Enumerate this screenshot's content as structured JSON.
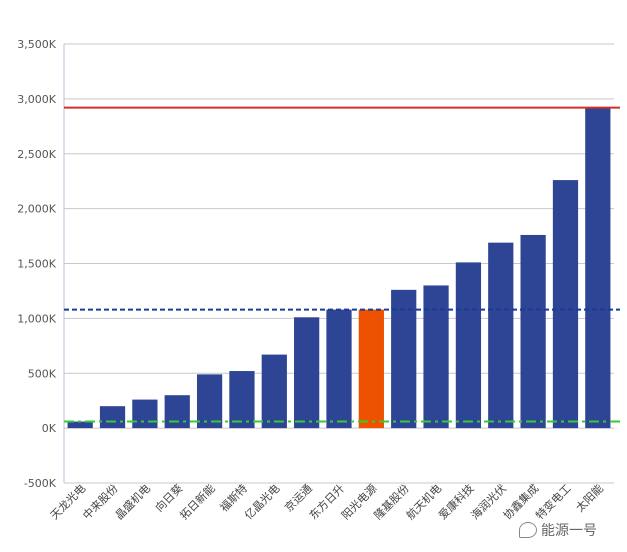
{
  "chart_data": {
    "type": "bar",
    "categories": [
      "天龙光电",
      "中来股份",
      "晶盛机电",
      "向日葵",
      "拓日新能",
      "福斯特",
      "亿晶光电",
      "京运通",
      "东方日升",
      "阳光电源",
      "隆基股份",
      "航天机电",
      "爱康科技",
      "海润光伏",
      "协鑫集成",
      "特变电工",
      "太阳能"
    ],
    "values": [
      60,
      200,
      260,
      300,
      490,
      520,
      670,
      1010,
      1080,
      1080,
      1260,
      1300,
      1510,
      1690,
      1760,
      2260,
      2920
    ],
    "highlight_index": 9,
    "ylim": [
      -500,
      3500
    ],
    "yticks": [
      -500,
      0,
      500,
      1000,
      1500,
      2000,
      2500,
      3000,
      3500
    ],
    "ytick_labels": [
      "-500K",
      "0K",
      "500K",
      "1,000K",
      "1,500K",
      "2,000K",
      "2,500K",
      "3,000K",
      "3,500K"
    ],
    "reference_lines": [
      {
        "value": 2920,
        "style": "solid",
        "color": "#d0302a"
      },
      {
        "value": 1080,
        "style": "dashed",
        "color": "#1a3a9a"
      },
      {
        "value": 60,
        "style": "dashdot",
        "color": "#33cc33"
      }
    ],
    "grid": true,
    "colors": {
      "bar": "#2e4595",
      "highlight": "#ee5200"
    }
  },
  "watermark": "能源一号"
}
